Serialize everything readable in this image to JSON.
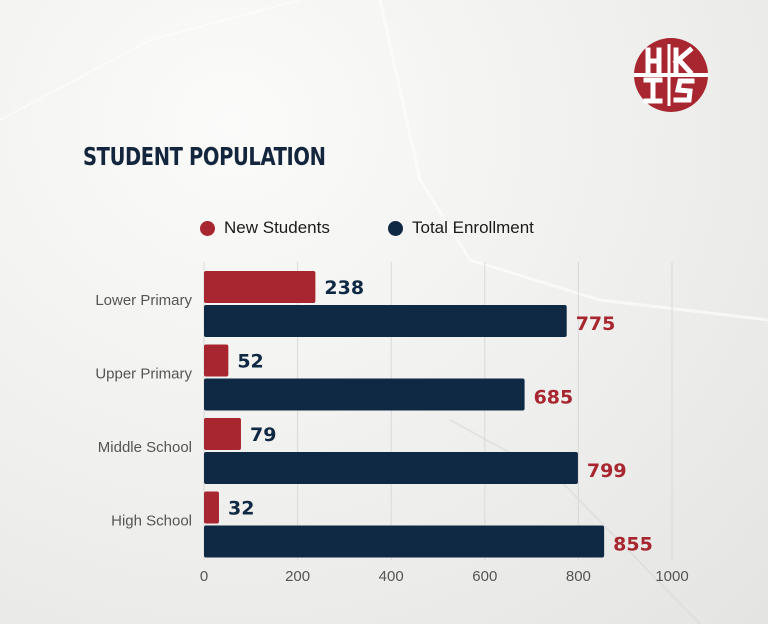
{
  "title": "STUDENT POPULATION",
  "logo": {
    "text": "HKIS"
  },
  "colors": {
    "new_students": "#a8262f",
    "total_enrollment": "#0f2944",
    "title": "#14263d",
    "grid": "#d9d9d9",
    "axis_text": "#555555"
  },
  "legend": [
    {
      "label": "New Students",
      "color": "#a8262f"
    },
    {
      "label": "Total Enrollment",
      "color": "#0f2944"
    }
  ],
  "chart_data": {
    "type": "bar",
    "orientation": "horizontal",
    "title": "STUDENT POPULATION",
    "categories": [
      "Lower Primary",
      "Upper Primary",
      "Middle School",
      "High School"
    ],
    "series": [
      {
        "name": "New Students",
        "values": [
          238,
          52,
          79,
          32
        ]
      },
      {
        "name": "Total Enrollment",
        "values": [
          775,
          685,
          799,
          855
        ]
      }
    ],
    "xlim": [
      0,
      1000
    ],
    "xticks": [
      0,
      200,
      400,
      600,
      800,
      1000
    ],
    "grid": true,
    "legend_position": "top"
  }
}
